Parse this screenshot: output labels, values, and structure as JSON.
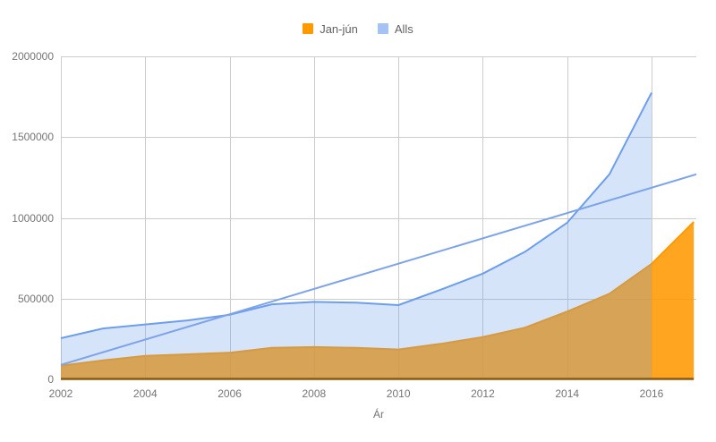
{
  "chart_data": {
    "type": "area",
    "title": "",
    "xlabel": "Ár",
    "ylabel": "",
    "xlim": [
      2002,
      2017.06
    ],
    "ylim": [
      0,
      2000000
    ],
    "xticks": [
      2002,
      2004,
      2006,
      2008,
      2010,
      2012,
      2014,
      2016
    ],
    "yticks": [
      0,
      500000,
      1000000,
      1500000,
      2000000
    ],
    "grid": true,
    "legend_position": "top",
    "series": [
      {
        "name": "Jan-jún",
        "color": "#ff9900",
        "fill": "rgba(255,153,0,0.88)",
        "legend_swatch": "#ff9900",
        "x": [
          2002,
          2003,
          2004,
          2005,
          2006,
          2007,
          2008,
          2009,
          2010,
          2011,
          2012,
          2013,
          2014,
          2015,
          2016,
          2017
        ],
        "values": [
          85000,
          118000,
          145000,
          155000,
          165000,
          195000,
          200000,
          195000,
          185000,
          220000,
          262000,
          320000,
          420000,
          530000,
          715000,
          975000
        ]
      },
      {
        "name": "Alls",
        "color": "#6d9eeb",
        "fill": "rgba(109,158,235,0.28)",
        "legend_swatch": "#a4c2f4",
        "x": [
          2002,
          2003,
          2004,
          2005,
          2006,
          2007,
          2008,
          2009,
          2010,
          2011,
          2012,
          2013,
          2014,
          2015,
          2016
        ],
        "values": [
          255000,
          315000,
          340000,
          365000,
          400000,
          465000,
          480000,
          475000,
          460000,
          555000,
          655000,
          790000,
          970000,
          1270000,
          1775000
        ]
      }
    ],
    "trendline": {
      "series": "Alls",
      "color": "#7da3e8",
      "x": [
        2002,
        2017.06
      ],
      "values": [
        90000,
        1270000
      ]
    },
    "colors": {
      "grid": "#cccccc",
      "baseline": "#8a5a12",
      "tick_text": "#757575",
      "legend_text": "#616161",
      "axis_title_text": "#757575"
    }
  }
}
